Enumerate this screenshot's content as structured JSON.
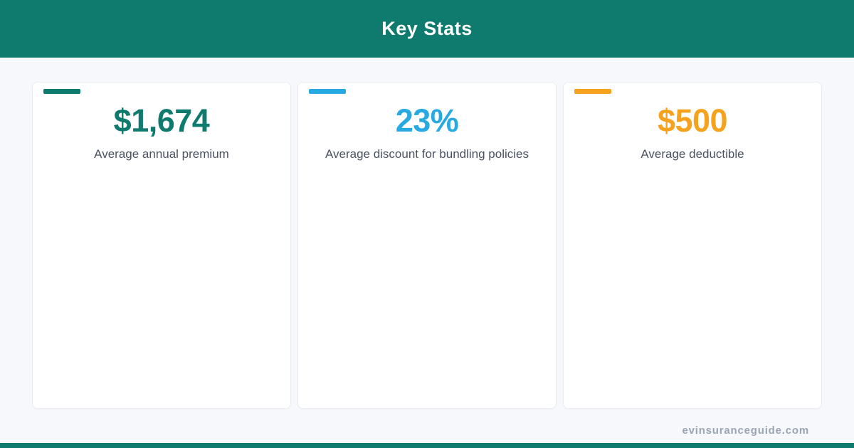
{
  "header": {
    "title": "Key Stats"
  },
  "cards": [
    {
      "value": "$1,674",
      "label": "Average annual premium",
      "accent_color": "#0f7a6e"
    },
    {
      "value": "23%",
      "label": "Average discount for bundling policies",
      "accent_color": "#29a9e1"
    },
    {
      "value": "$500",
      "label": "Average deductible",
      "accent_color": "#f5a31f"
    }
  ],
  "footer": {
    "website": "evinsuranceguide.com"
  },
  "colors": {
    "header_teal": "#0f7a6e",
    "background": "#f7f8fb",
    "card_border": "#e9ecf1",
    "label_text": "#4a5262",
    "footer_text": "#9aa5b4",
    "bottom_bar_teal": "#0f7a6e"
  }
}
